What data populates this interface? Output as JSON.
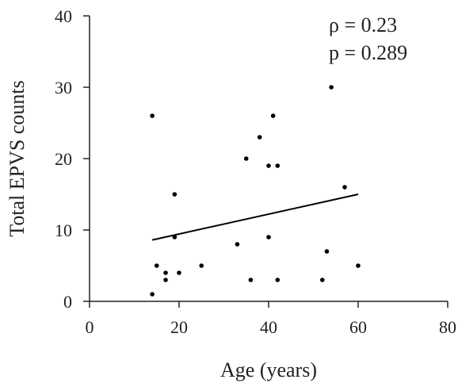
{
  "chart_data": {
    "type": "scatter",
    "xlabel": "Age (years)",
    "ylabel": "Total EPVS counts",
    "xlim": [
      0,
      80
    ],
    "ylim": [
      0,
      40
    ],
    "x_ticks": [
      "0",
      "20",
      "40",
      "60",
      "80"
    ],
    "y_ticks": [
      "0",
      "10",
      "20",
      "30",
      "40"
    ],
    "grid": false,
    "legend": "none",
    "annotations": [
      "ρ = 0.23",
      "p = 0.289"
    ],
    "points": [
      {
        "x": 14,
        "y": 1
      },
      {
        "x": 14,
        "y": 26
      },
      {
        "x": 15,
        "y": 5
      },
      {
        "x": 17,
        "y": 3
      },
      {
        "x": 17,
        "y": 4
      },
      {
        "x": 19,
        "y": 9
      },
      {
        "x": 19,
        "y": 15
      },
      {
        "x": 20,
        "y": 4
      },
      {
        "x": 25,
        "y": 5
      },
      {
        "x": 33,
        "y": 8
      },
      {
        "x": 35,
        "y": 20
      },
      {
        "x": 36,
        "y": 3
      },
      {
        "x": 38,
        "y": 23
      },
      {
        "x": 40,
        "y": 19
      },
      {
        "x": 40,
        "y": 9
      },
      {
        "x": 41,
        "y": 26
      },
      {
        "x": 42,
        "y": 19
      },
      {
        "x": 42,
        "y": 3
      },
      {
        "x": 52,
        "y": 3
      },
      {
        "x": 53,
        "y": 7
      },
      {
        "x": 54,
        "y": 30
      },
      {
        "x": 57,
        "y": 16
      },
      {
        "x": 60,
        "y": 5
      }
    ],
    "trendline": {
      "x": [
        14,
        60
      ],
      "y": [
        8.6,
        15
      ]
    },
    "colors": {
      "marker": "#000000",
      "axis": "#222222",
      "line": "#000000"
    }
  }
}
